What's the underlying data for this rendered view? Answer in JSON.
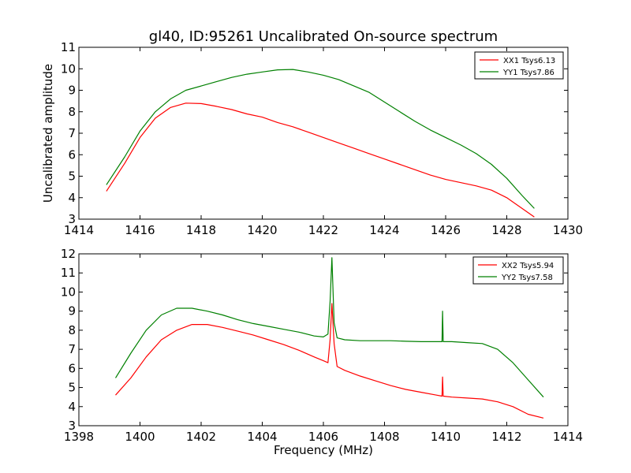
{
  "chart_data": [
    {
      "type": "line",
      "title": "gl40, ID:95261 Uncalibrated On-source spectrum",
      "xlabel": "",
      "ylabel": "Uncalibrated amplitude",
      "xlim": [
        1414,
        1430
      ],
      "ylim": [
        3,
        11
      ],
      "xticks": [
        1414,
        1416,
        1418,
        1420,
        1422,
        1424,
        1426,
        1428,
        1430
      ],
      "yticks": [
        3,
        4,
        5,
        6,
        7,
        8,
        9,
        10,
        11
      ],
      "legend": "top-right",
      "grid": false,
      "series": [
        {
          "name": "XX1 Tsys6.13",
          "color": "#ff0000",
          "x": [
            1414.9,
            1415.5,
            1416.0,
            1416.5,
            1417.0,
            1417.5,
            1418.0,
            1418.5,
            1419.0,
            1419.5,
            1420.0,
            1420.5,
            1421.0,
            1421.5,
            1422.0,
            1422.5,
            1423.0,
            1423.5,
            1424.0,
            1424.5,
            1425.0,
            1425.5,
            1426.0,
            1426.5,
            1427.0,
            1427.5,
            1428.0,
            1428.5,
            1428.9
          ],
          "y": [
            4.3,
            5.6,
            6.8,
            7.7,
            8.2,
            8.4,
            8.38,
            8.25,
            8.1,
            7.9,
            7.75,
            7.5,
            7.3,
            7.05,
            6.8,
            6.55,
            6.3,
            6.05,
            5.8,
            5.55,
            5.3,
            5.05,
            4.85,
            4.7,
            4.55,
            4.35,
            4.0,
            3.5,
            3.1
          ]
        },
        {
          "name": "YY1 Tsys7.86",
          "color": "#008000",
          "x": [
            1414.9,
            1415.5,
            1416.0,
            1416.5,
            1417.0,
            1417.5,
            1418.0,
            1418.5,
            1419.0,
            1419.5,
            1420.0,
            1420.5,
            1421.0,
            1421.5,
            1422.0,
            1422.5,
            1423.0,
            1423.5,
            1424.0,
            1424.5,
            1425.0,
            1425.5,
            1426.0,
            1426.5,
            1427.0,
            1427.5,
            1428.0,
            1428.5,
            1428.9
          ],
          "y": [
            4.6,
            5.9,
            7.1,
            8.0,
            8.6,
            9.0,
            9.2,
            9.4,
            9.6,
            9.75,
            9.85,
            9.95,
            9.97,
            9.85,
            9.7,
            9.5,
            9.2,
            8.9,
            8.45,
            8.0,
            7.55,
            7.15,
            6.8,
            6.45,
            6.05,
            5.55,
            4.9,
            4.1,
            3.5
          ]
        }
      ]
    },
    {
      "type": "line",
      "title": "",
      "xlabel": "Frequency (MHz)",
      "ylabel": "",
      "xlim": [
        1398,
        1414
      ],
      "ylim": [
        3,
        12
      ],
      "xticks": [
        1398,
        1400,
        1402,
        1404,
        1406,
        1408,
        1410,
        1412,
        1414
      ],
      "yticks": [
        3,
        4,
        5,
        6,
        7,
        8,
        9,
        10,
        11,
        12
      ],
      "legend": "top-right",
      "grid": false,
      "series": [
        {
          "name": "XX2 Tsys5.94",
          "color": "#ff0000",
          "x": [
            1399.2,
            1399.7,
            1400.2,
            1400.7,
            1401.2,
            1401.7,
            1402.2,
            1402.7,
            1403.2,
            1403.7,
            1404.2,
            1404.7,
            1405.2,
            1405.7,
            1406.0,
            1406.15,
            1406.22,
            1406.28,
            1406.35,
            1406.45,
            1406.7,
            1407.2,
            1407.7,
            1408.2,
            1408.7,
            1409.2,
            1409.7,
            1409.88,
            1409.9,
            1409.92,
            1410.2,
            1410.7,
            1411.2,
            1411.7,
            1412.2,
            1412.7,
            1413.2
          ],
          "y": [
            4.6,
            5.5,
            6.6,
            7.5,
            8.0,
            8.3,
            8.3,
            8.15,
            7.95,
            7.75,
            7.5,
            7.25,
            6.95,
            6.6,
            6.4,
            6.3,
            7.5,
            9.4,
            7.3,
            6.1,
            5.9,
            5.6,
            5.35,
            5.1,
            4.9,
            4.75,
            4.6,
            4.55,
            5.55,
            4.55,
            4.5,
            4.45,
            4.4,
            4.25,
            4.0,
            3.6,
            3.4
          ]
        },
        {
          "name": "YY2 Tsys7.58",
          "color": "#008000",
          "x": [
            1399.2,
            1399.7,
            1400.2,
            1400.7,
            1401.2,
            1401.7,
            1402.2,
            1402.7,
            1403.2,
            1403.7,
            1404.2,
            1404.7,
            1405.2,
            1405.7,
            1406.0,
            1406.15,
            1406.22,
            1406.28,
            1406.35,
            1406.45,
            1406.7,
            1407.2,
            1407.7,
            1408.2,
            1408.7,
            1409.2,
            1409.7,
            1409.88,
            1409.9,
            1409.92,
            1410.2,
            1410.7,
            1411.2,
            1411.7,
            1412.2,
            1412.7,
            1413.2
          ],
          "y": [
            5.5,
            6.8,
            8.0,
            8.8,
            9.15,
            9.15,
            9.0,
            8.8,
            8.55,
            8.35,
            8.2,
            8.05,
            7.9,
            7.7,
            7.65,
            7.8,
            9.5,
            11.8,
            8.4,
            7.6,
            7.5,
            7.45,
            7.45,
            7.45,
            7.42,
            7.4,
            7.4,
            7.4,
            9.0,
            7.4,
            7.4,
            7.35,
            7.3,
            7.0,
            6.3,
            5.4,
            4.5
          ]
        }
      ]
    }
  ]
}
